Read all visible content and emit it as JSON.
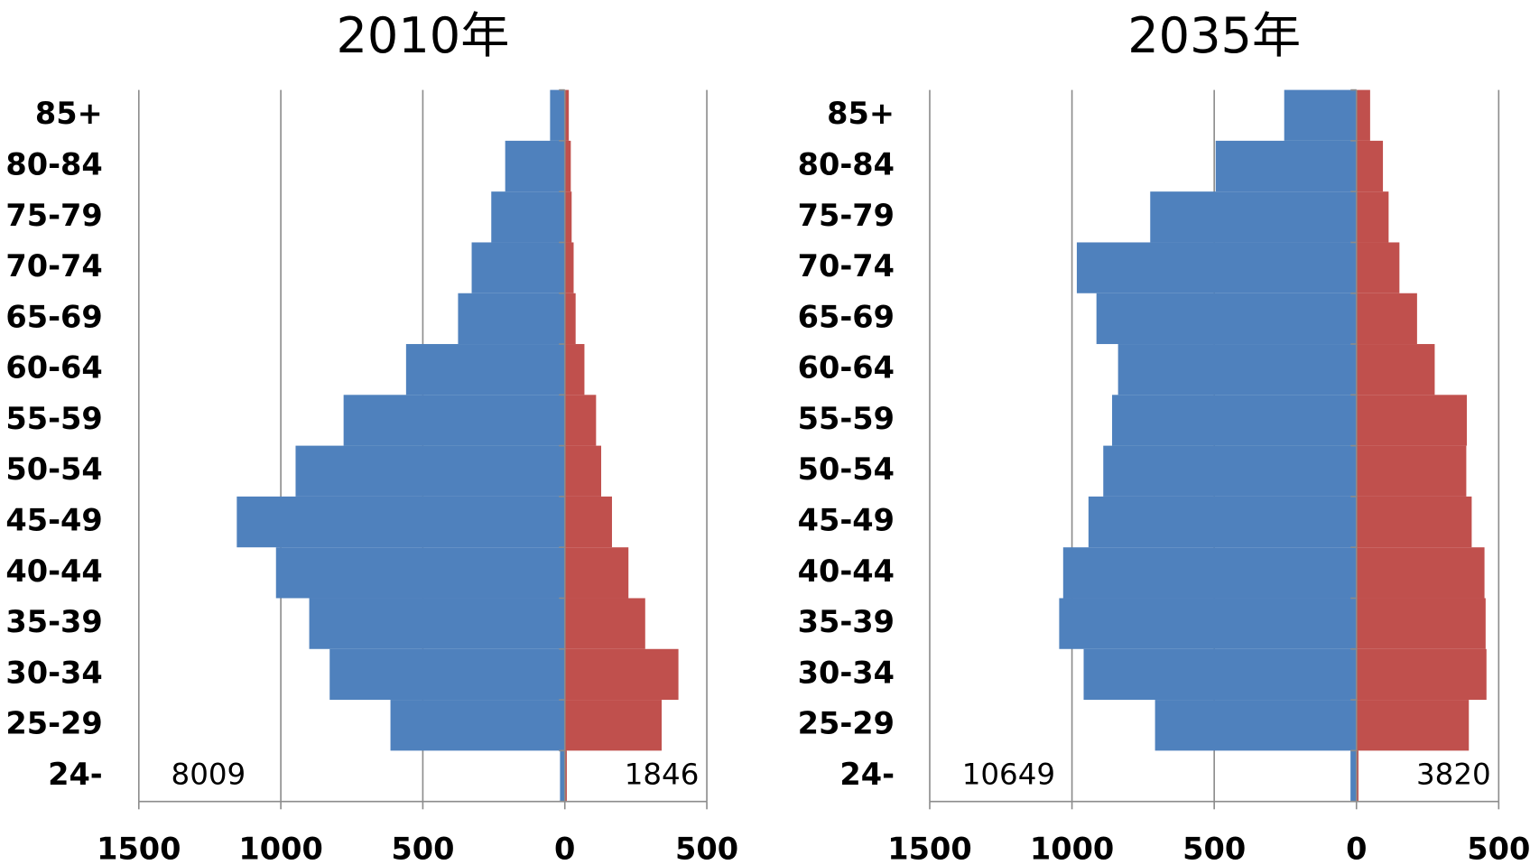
{
  "chart_data": [
    {
      "type": "bar",
      "orientation": "horizontal",
      "title": "2010年",
      "categories": [
        "85+",
        "80-84",
        "75-79",
        "70-74",
        "65-69",
        "60-64",
        "55-59",
        "50-54",
        "45-49",
        "40-44",
        "35-39",
        "30-34",
        "25-29",
        "24-"
      ],
      "series": [
        {
          "color": "#4f81bd",
          "values": [
            -52,
            -210,
            -259,
            -328,
            -376,
            -559,
            -779,
            -948,
            -1155,
            -1017,
            -900,
            -828,
            -614,
            -17
          ]
        },
        {
          "color": "#c0504d",
          "values": [
            14,
            21,
            24,
            31,
            38,
            69,
            110,
            128,
            166,
            224,
            283,
            400,
            341,
            7
          ]
        }
      ],
      "annotations": [
        "8009",
        "1846"
      ],
      "xlim": [
        -1500,
        500
      ],
      "xticks": [
        {
          "value": -1500,
          "label": "1500"
        },
        {
          "value": -1000,
          "label": "1000"
        },
        {
          "value": -500,
          "label": "500"
        },
        0,
        500
      ],
      "grid": true
    },
    {
      "type": "bar",
      "orientation": "horizontal",
      "title": "2035年",
      "categories": [
        "85+",
        "80-84",
        "75-79",
        "70-74",
        "65-69",
        "60-64",
        "55-59",
        "50-54",
        "45-49",
        "40-44",
        "35-39",
        "30-34",
        "25-29",
        "24-"
      ],
      "series": [
        {
          "color": "#4f81bd",
          "values": [
            -254,
            -495,
            -725,
            -983,
            -914,
            -838,
            -859,
            -890,
            -942,
            -1031,
            -1045,
            -959,
            -708,
            -21
          ]
        },
        {
          "color": "#c0504d",
          "values": [
            48,
            93,
            113,
            151,
            213,
            275,
            388,
            386,
            405,
            450,
            454,
            457,
            395,
            7
          ]
        }
      ],
      "annotations": [
        "10649",
        "3820"
      ],
      "xlim": [
        -1500,
        500
      ],
      "xticks": [
        {
          "value": -1500,
          "label": "1500"
        },
        {
          "value": -1000,
          "label": "1000"
        },
        {
          "value": -500,
          "label": "500"
        },
        0,
        500
      ],
      "grid": true
    }
  ]
}
